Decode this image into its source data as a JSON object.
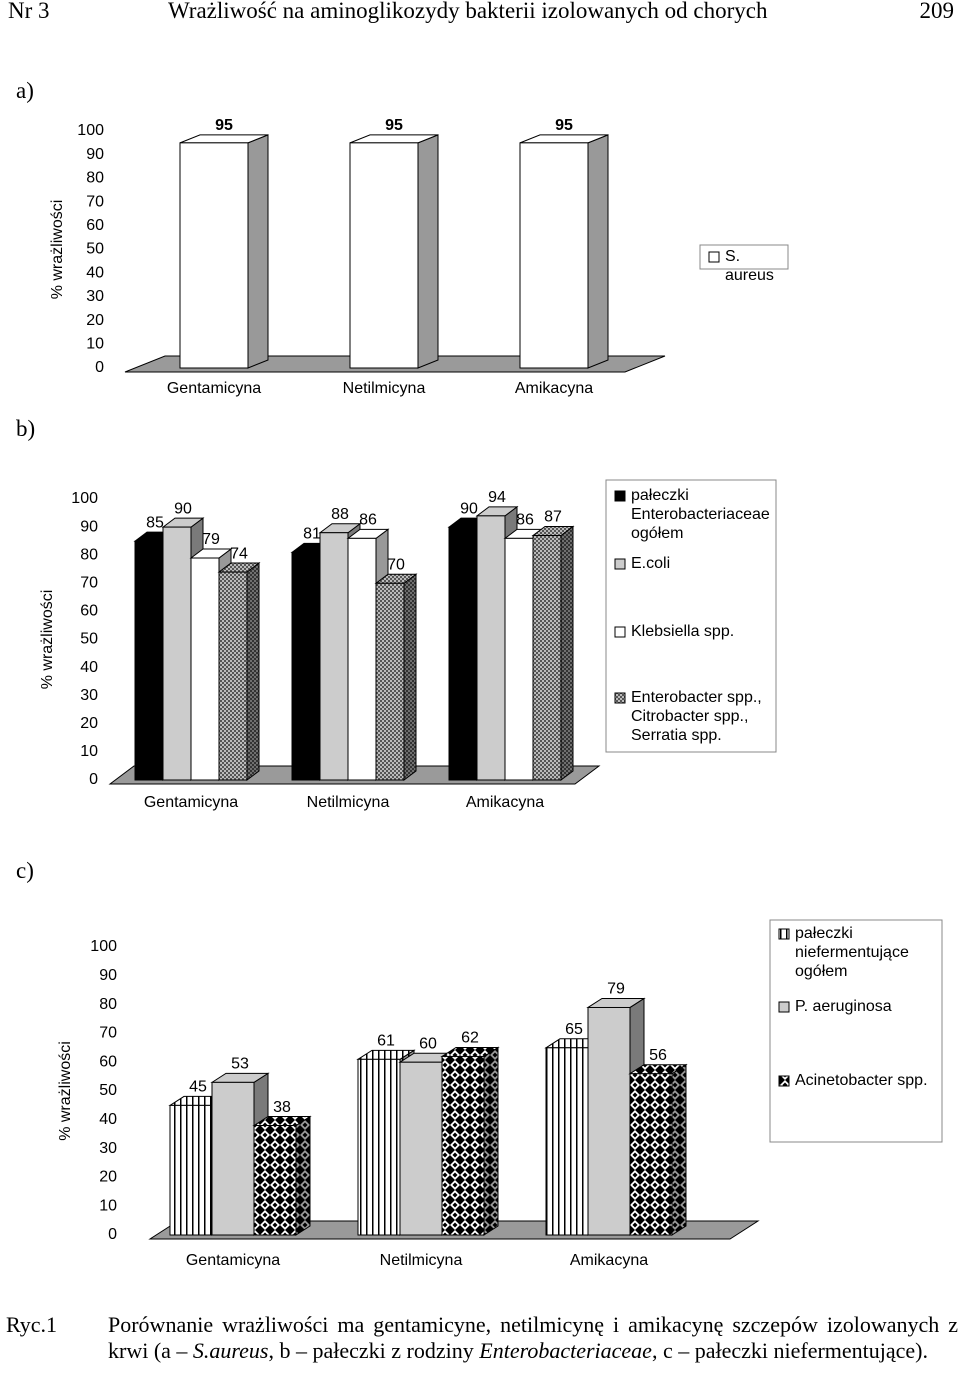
{
  "header": {
    "journal": "Nr 3",
    "title": "Wrażliwość na aminoglikozydy  bakterii izolowanych od chorych",
    "page": "209"
  },
  "chart_data": [
    {
      "type": "bar3d",
      "label": "a)",
      "y_label": "% wrażliwości",
      "categories": [
        "Gentamicyna",
        "Netilmicyna",
        "Amikacyna"
      ],
      "series": [
        {
          "name": "S. aureus",
          "color": "#ffffff",
          "values": [
            95,
            95,
            95
          ]
        }
      ],
      "ylim": [
        0,
        100
      ],
      "yticks": [
        0,
        10,
        20,
        30,
        40,
        50,
        60,
        70,
        80,
        90,
        100
      ]
    },
    {
      "type": "bar3d",
      "label": "b)",
      "y_label": "% wrażliwości",
      "categories": [
        "Gentamicyna",
        "Netilmicyna",
        "Amikacyna"
      ],
      "series": [
        {
          "name": "pałeczki Enterobacteriaceae ogółem",
          "color": "#000000",
          "values": [
            85,
            81,
            90
          ]
        },
        {
          "name": "E.coli",
          "color": "#cccccc",
          "values": [
            90,
            88,
            94
          ]
        },
        {
          "name": "Klebsiella spp.",
          "color": "#ffffff",
          "values": [
            79,
            86,
            86
          ]
        },
        {
          "name": "Enterobacter spp., Citrobacter spp., Serratia spp.",
          "color": "#999999",
          "pattern": "dots",
          "values": [
            74,
            70,
            87
          ]
        }
      ],
      "ylim": [
        0,
        100
      ],
      "yticks": [
        0,
        10,
        20,
        30,
        40,
        50,
        60,
        70,
        80,
        90,
        100
      ]
    },
    {
      "type": "bar3d",
      "label": "c)",
      "y_label": "% wrażliwości",
      "categories": [
        "Gentamicyna",
        "Netilmicyna",
        "Amikacyna"
      ],
      "series": [
        {
          "name": "pałeczki niefermentujące ogółem",
          "color": "#ffffff",
          "pattern": "vlines",
          "values": [
            45,
            61,
            65
          ]
        },
        {
          "name": "P. aeruginosa",
          "color": "#cccccc",
          "values": [
            53,
            60,
            79
          ]
        },
        {
          "name": "Acinetobacter spp.",
          "color": "#000000",
          "pattern": "checker",
          "values": [
            38,
            62,
            56
          ]
        }
      ],
      "ylim": [
        0,
        100
      ],
      "yticks": [
        0,
        10,
        20,
        30,
        40,
        50,
        60,
        70,
        80,
        90,
        100
      ]
    }
  ],
  "caption": {
    "label": "Ryc.1",
    "parts": [
      "Porównanie wrażliwości ma gentamicyne, netilmicynę i amikacynę szczepów izolowanych z krwi (a – ",
      "S.aureus",
      ", b – pałeczki z rodziny ",
      "Enterobacteriaceae",
      ", c – pałeczki niefermentujące)."
    ]
  }
}
